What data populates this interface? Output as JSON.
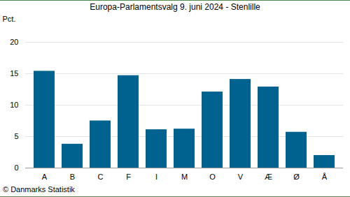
{
  "chart_data": {
    "type": "bar",
    "title": "Europa-Parlamentsvalg 9. juni 2024 - Stenlille",
    "y_label": "Pct.",
    "caption": "© Danmarks Statistik",
    "categories": [
      "A",
      "B",
      "C",
      "F",
      "I",
      "M",
      "O",
      "V",
      "Æ",
      "Ø",
      "Å"
    ],
    "values": [
      15.4,
      3.8,
      7.5,
      14.7,
      6.1,
      6.2,
      12.1,
      14.1,
      12.9,
      5.7,
      2.0
    ],
    "color": "#00628f",
    "ylim": [
      0,
      20
    ],
    "yticks": [
      0,
      5,
      10,
      15,
      20
    ],
    "grid": true
  }
}
